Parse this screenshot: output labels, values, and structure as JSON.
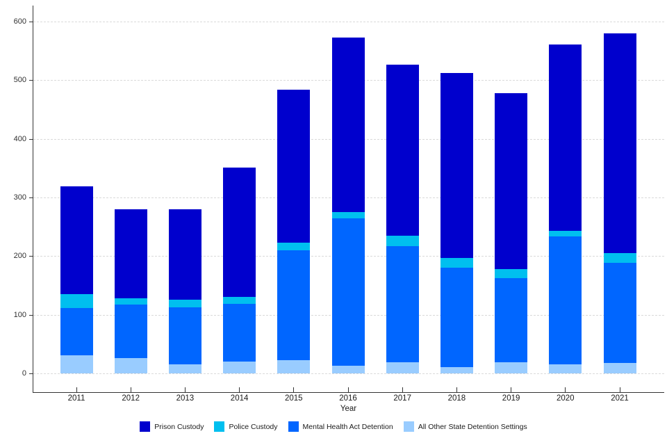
{
  "chart_data": {
    "type": "bar",
    "stacked": true,
    "title": "",
    "xlabel": "Year",
    "ylabel": "",
    "ylim": [
      0,
      600
    ],
    "yticks": [
      0,
      100,
      200,
      300,
      400,
      500,
      600
    ],
    "grid": "horizontal-dashed",
    "legend_position": "bottom",
    "categories": [
      "2011",
      "2012",
      "2013",
      "2014",
      "2015",
      "2016",
      "2017",
      "2018",
      "2019",
      "2020",
      "2021"
    ],
    "series": [
      {
        "name": "All Other State Detention Settings",
        "color": "#99CCFF",
        "values": [
          31,
          27,
          16,
          21,
          23,
          14,
          20,
          11,
          20,
          16,
          18
        ]
      },
      {
        "name": "Mental Health Act Detention",
        "color": "#0066FF",
        "values": [
          81,
          91,
          97,
          98,
          188,
          251,
          197,
          170,
          143,
          218,
          171
        ]
      },
      {
        "name": "Police Custody",
        "color": "#00BFEF",
        "values": [
          24,
          11,
          13,
          12,
          12,
          11,
          18,
          17,
          16,
          10,
          17
        ]
      },
      {
        "name": "Prison Custody",
        "color": "#0000CD",
        "values": [
          184,
          151,
          154,
          220,
          261,
          297,
          292,
          315,
          299,
          318,
          374
        ]
      }
    ],
    "totals": [
      320,
      280,
      280,
      351,
      484,
      573,
      527,
      513,
      478,
      562,
      580
    ]
  },
  "legend": {
    "items": [
      {
        "label": "Prison Custody",
        "color": "#0000CD"
      },
      {
        "label": "Police Custody",
        "color": "#00BFEF"
      },
      {
        "label": "Mental Health Act Detention",
        "color": "#0066FF"
      },
      {
        "label": "All Other State Detention Settings",
        "color": "#99CCFF"
      }
    ]
  },
  "axes": {
    "x_title": "Year",
    "y_tick_labels": [
      "0",
      "100",
      "200",
      "300",
      "400",
      "500",
      "600"
    ]
  }
}
